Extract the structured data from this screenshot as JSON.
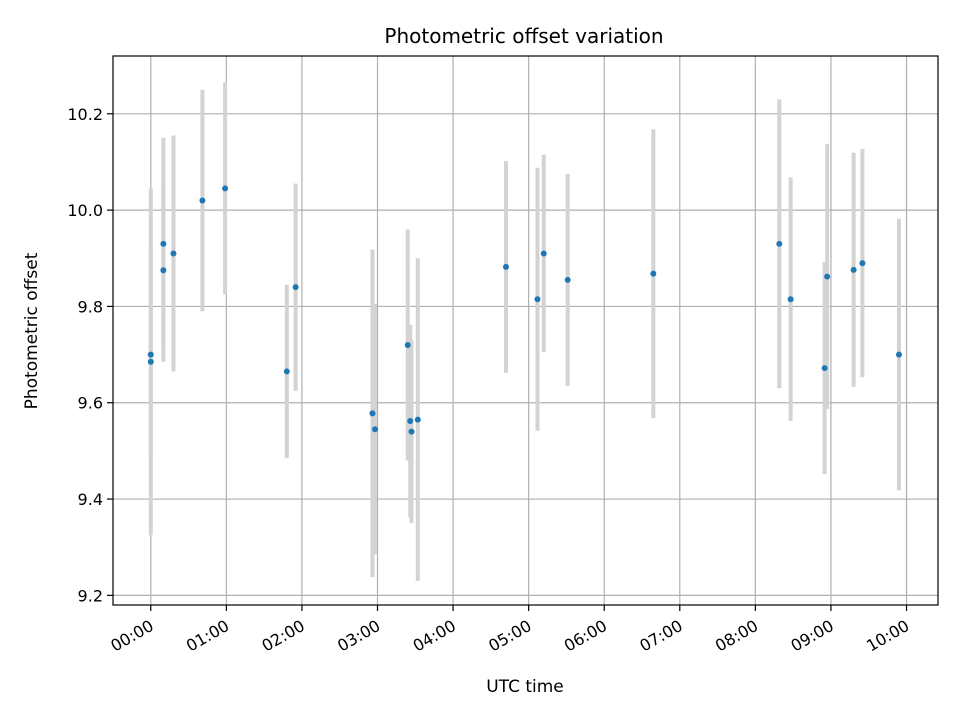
{
  "chart_data": {
    "type": "scatter",
    "title": "Photometric offset variation",
    "xlabel": "UTC time",
    "ylabel": "Photometric offset",
    "x_ticks": [
      "00:00",
      "01:00",
      "02:00",
      "03:00",
      "04:00",
      "05:00",
      "06:00",
      "07:00",
      "08:00",
      "09:00",
      "10:00"
    ],
    "y_ticks": [
      "9.2",
      "9.4",
      "9.6",
      "9.8",
      "10.0",
      "10.2"
    ],
    "xlim": [
      "-00:30",
      "10:25"
    ],
    "ylim": [
      9.18,
      10.32
    ],
    "grid": true,
    "colors": {
      "point": "#1f77b4",
      "errorbar": "#d3d3d3",
      "grid": "#b0b0b0"
    },
    "points": [
      {
        "x": "00:00",
        "y": 9.7,
        "yerr": 0.21
      },
      {
        "x": "00:00",
        "y": 9.685,
        "yerr": 0.36
      },
      {
        "x": "00:10",
        "y": 9.93,
        "yerr": 0.22
      },
      {
        "x": "00:10",
        "y": 9.875,
        "yerr": 0.19
      },
      {
        "x": "00:18",
        "y": 9.91,
        "yerr": 0.245
      },
      {
        "x": "00:41",
        "y": 10.02,
        "yerr": 0.23
      },
      {
        "x": "00:59",
        "y": 10.045,
        "yerr": 0.22
      },
      {
        "x": "01:48",
        "y": 9.665,
        "yerr": 0.18
      },
      {
        "x": "01:55",
        "y": 9.84,
        "yerr": 0.215
      },
      {
        "x": "02:56",
        "y": 9.578,
        "yerr": 0.34
      },
      {
        "x": "02:58",
        "y": 9.545,
        "yerr": 0.26
      },
      {
        "x": "03:24",
        "y": 9.72,
        "yerr": 0.24
      },
      {
        "x": "03:26",
        "y": 9.562,
        "yerr": 0.2
      },
      {
        "x": "03:27",
        "y": 9.54,
        "yerr": 0.19
      },
      {
        "x": "03:32",
        "y": 9.565,
        "yerr": 0.335
      },
      {
        "x": "04:42",
        "y": 9.882,
        "yerr": 0.22
      },
      {
        "x": "05:07",
        "y": 9.815,
        "yerr": 0.273
      },
      {
        "x": "05:12",
        "y": 9.91,
        "yerr": 0.205
      },
      {
        "x": "05:31",
        "y": 9.855,
        "yerr": 0.22
      },
      {
        "x": "06:39",
        "y": 9.868,
        "yerr": 0.3
      },
      {
        "x": "08:19",
        "y": 9.93,
        "yerr": 0.3
      },
      {
        "x": "08:28",
        "y": 9.815,
        "yerr": 0.253
      },
      {
        "x": "08:55",
        "y": 9.672,
        "yerr": 0.22
      },
      {
        "x": "08:57",
        "y": 9.862,
        "yerr": 0.275
      },
      {
        "x": "09:18",
        "y": 9.876,
        "yerr": 0.243
      },
      {
        "x": "09:25",
        "y": 9.89,
        "yerr": 0.237
      },
      {
        "x": "09:54",
        "y": 9.7,
        "yerr": 0.282
      }
    ]
  }
}
